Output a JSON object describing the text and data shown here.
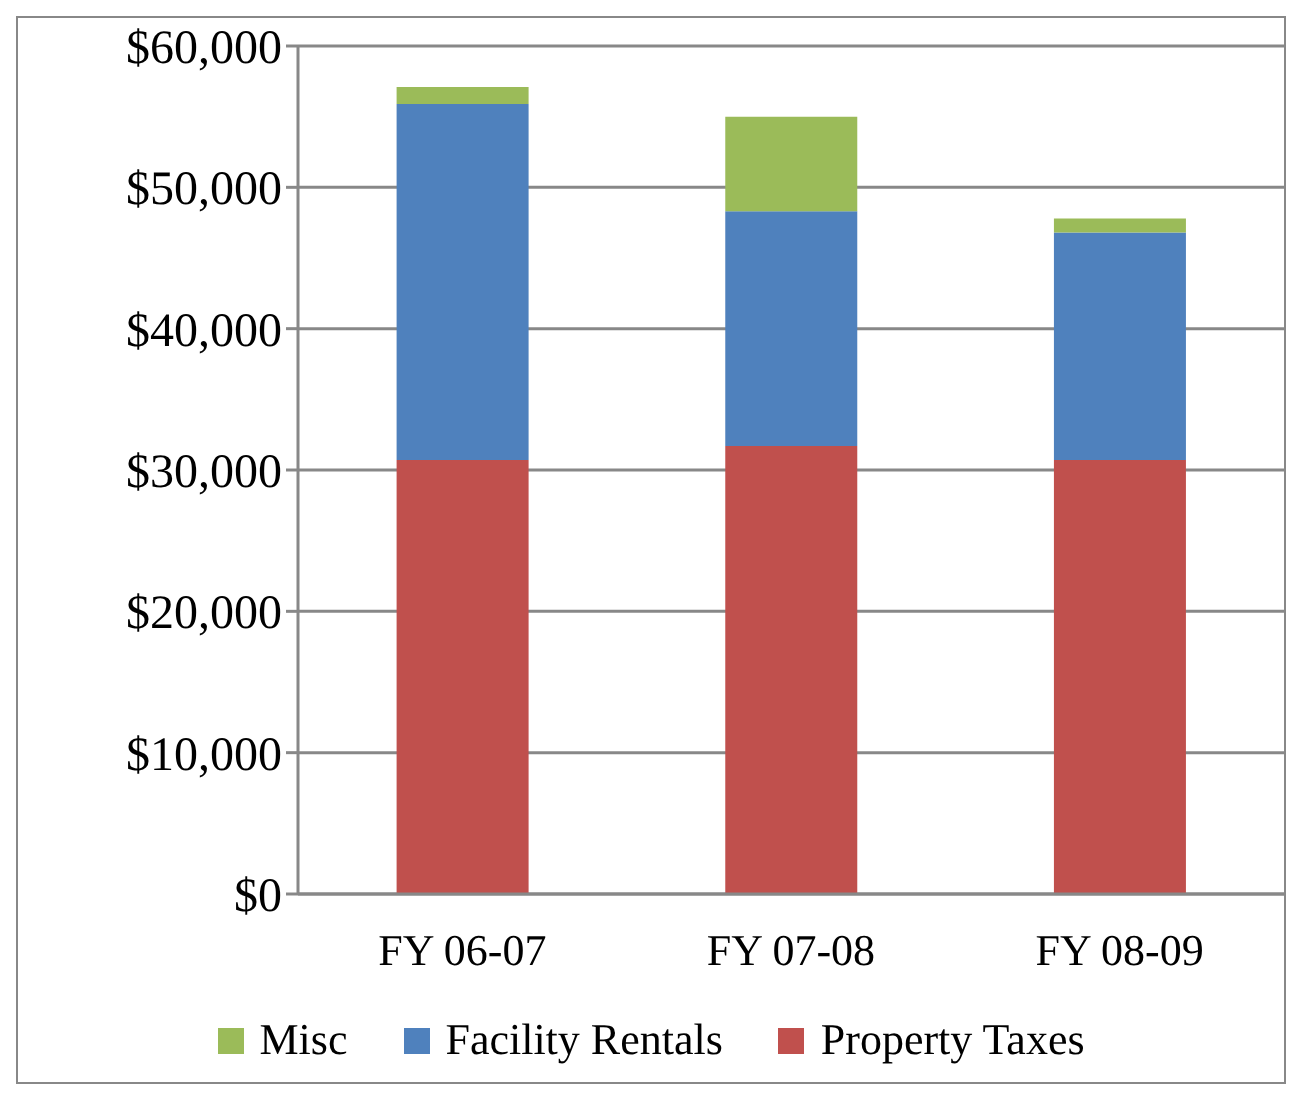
{
  "chart_data": {
    "type": "bar",
    "stacked": true,
    "categories": [
      "FY 06-07",
      "FY 07-08",
      "FY 08-09"
    ],
    "series": [
      {
        "name": "Property Taxes",
        "color": "#c0504d",
        "values": [
          30700,
          31700,
          30700
        ]
      },
      {
        "name": "Facility Rentals",
        "color": "#4f81bd",
        "values": [
          25200,
          16600,
          16100
        ]
      },
      {
        "name": "Misc",
        "color": "#9bbb59",
        "values": [
          1200,
          6700,
          1000
        ]
      }
    ],
    "ylim": [
      0,
      60000
    ],
    "yticks": [
      {
        "value": 0,
        "label": "$0"
      },
      {
        "value": 10000,
        "label": "$10,000"
      },
      {
        "value": 20000,
        "label": "$20,000"
      },
      {
        "value": 30000,
        "label": "$30,000"
      },
      {
        "value": 40000,
        "label": "$40,000"
      },
      {
        "value": 50000,
        "label": "$50,000"
      },
      {
        "value": 60000,
        "label": "$60,000"
      }
    ],
    "grid": "y",
    "legend": "bottom"
  }
}
